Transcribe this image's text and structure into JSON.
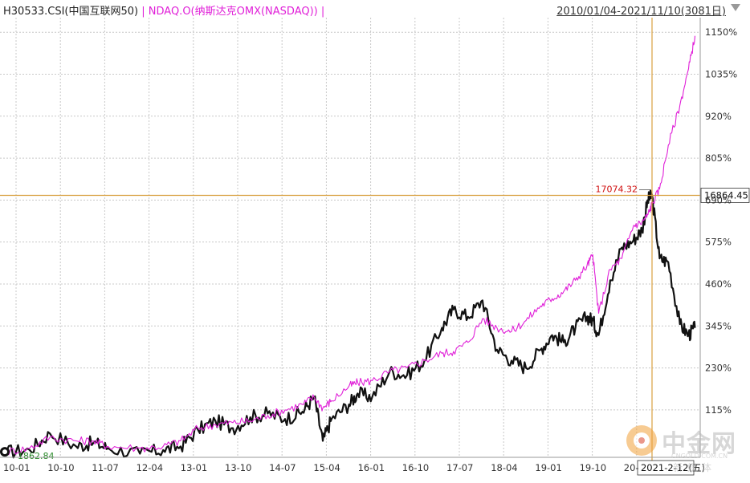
{
  "header": {
    "series1_label": "H30533.CSI(中国互联网50)",
    "separator": " | ",
    "series2_label": "NDAQ.O(纳斯达克OMX(NASDAQ))",
    "trailing": " |",
    "range_label": "2010/01/04-2021/11/10(3081日)"
  },
  "watermark": {
    "name": "中金网",
    "url": "CNGOLD.COM.CN",
    "tagline": "新媒体"
  },
  "colors": {
    "series1": "#111111",
    "series2": "#e020d8",
    "crosshair": "#d9a040",
    "grid": "#c8c8c8",
    "marker_text": "#d01010",
    "start_text": "#2a8a2a"
  },
  "chart_data": {
    "type": "line",
    "y_axis_side": "right",
    "y_axis_unit": "%",
    "y_ticks": [
      1150,
      1035,
      920,
      805,
      690,
      575,
      460,
      345,
      230,
      115
    ],
    "y_tick_labels": [
      "1150%",
      "1035%",
      "920%",
      "805%",
      "690%",
      "575%",
      "460%",
      "345%",
      "230%",
      "115%"
    ],
    "ylim": [
      -15,
      1190
    ],
    "x_ticks": [
      "10-01",
      "10-10",
      "11-07",
      "12-04",
      "13-01",
      "13-10",
      "14-07",
      "15-04",
      "16-01",
      "16-10",
      "17-07",
      "18-04",
      "19-01",
      "19-10",
      "20-"
    ],
    "grid": true,
    "crosshair": {
      "date_label": "2021-2-12(五)",
      "value_label": "16864.45",
      "marker_value_label": "17074.32",
      "x": 2021.12,
      "y": 703
    },
    "start_label": "1862.84",
    "series": [
      {
        "name": "H30533.CSI(中国互联网50)",
        "x": [
          2010.0,
          2010.4,
          2010.75,
          2011.2,
          2011.5,
          2011.75,
          2012.3,
          2012.7,
          2013.0,
          2013.3,
          2013.6,
          2013.9,
          2014.2,
          2014.5,
          2014.8,
          2015.1,
          2015.3,
          2015.45,
          2015.6,
          2015.9,
          2016.05,
          2016.3,
          2016.6,
          2016.9,
          2017.2,
          2017.5,
          2017.7,
          2017.95,
          2018.2,
          2018.45,
          2018.7,
          2018.95,
          2019.2,
          2019.4,
          2019.6,
          2019.8,
          2020.0,
          2020.1,
          2020.2,
          2020.4,
          2020.6,
          2020.8,
          2020.95,
          2021.05,
          2021.12,
          2021.25,
          2021.4,
          2021.6,
          2021.75,
          2021.86
        ],
        "y": [
          0,
          5,
          50,
          15,
          25,
          10,
          -5,
          5,
          15,
          60,
          85,
          65,
          95,
          105,
          90,
          110,
          150,
          30,
          90,
          130,
          160,
          150,
          220,
          210,
          250,
          340,
          390,
          370,
          415,
          280,
          250,
          230,
          280,
          320,
          300,
          340,
          370,
          360,
          320,
          470,
          560,
          580,
          610,
          690,
          703,
          530,
          520,
          350,
          320,
          340
        ]
      },
      {
        "name": "NDAQ.O(纳斯达克OMX(NASDAQ))",
        "x": [
          2010.0,
          2010.4,
          2010.75,
          2011.2,
          2011.5,
          2011.75,
          2012.3,
          2012.7,
          2013.0,
          2013.3,
          2013.6,
          2013.9,
          2014.2,
          2014.5,
          2014.8,
          2015.1,
          2015.3,
          2015.45,
          2015.6,
          2015.9,
          2016.05,
          2016.3,
          2016.6,
          2016.9,
          2017.2,
          2017.5,
          2017.7,
          2017.95,
          2018.2,
          2018.45,
          2018.7,
          2018.95,
          2019.2,
          2019.4,
          2019.6,
          2019.8,
          2020.0,
          2020.1,
          2020.2,
          2020.4,
          2020.6,
          2020.8,
          2020.95,
          2021.05,
          2021.12,
          2021.25,
          2021.4,
          2021.6,
          2021.75,
          2021.86
        ],
        "y": [
          0,
          10,
          40,
          30,
          30,
          15,
          10,
          15,
          30,
          65,
          75,
          80,
          85,
          100,
          115,
          130,
          150,
          120,
          140,
          180,
          190,
          195,
          220,
          230,
          250,
          270,
          275,
          300,
          365,
          340,
          330,
          360,
          400,
          420,
          440,
          470,
          510,
          540,
          380,
          500,
          530,
          620,
          630,
          650,
          680,
          720,
          840,
          950,
          1050,
          1140
        ]
      }
    ]
  }
}
